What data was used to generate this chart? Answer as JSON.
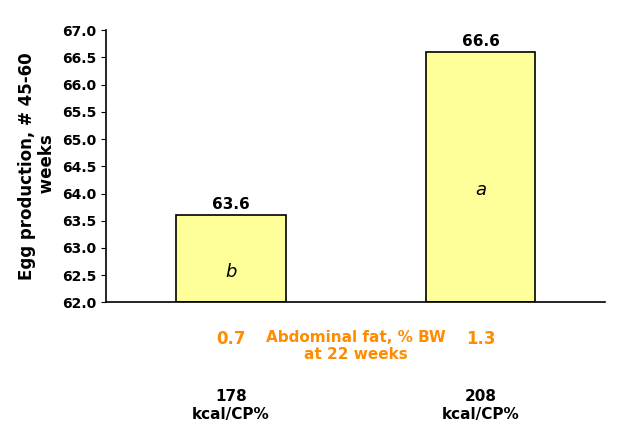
{
  "categories": [
    "178\nkcal/CP%",
    "208\nkcal/CP%"
  ],
  "values": [
    63.6,
    66.6
  ],
  "ymin": 62.0,
  "bar_color": "#ffff99",
  "bar_edgecolor": "#000000",
  "bar_letters": [
    "b",
    "a"
  ],
  "bar_abdominal": [
    "0.7",
    "1.3"
  ],
  "xlabel_center": "Abdominal fat, % BW\nat 22 weeks",
  "ylim": [
    62.0,
    67.0
  ],
  "ytick_step": 0.5,
  "value_labels": [
    "63.6",
    "66.6"
  ],
  "bar_letter_fontsize": 13,
  "value_label_fontsize": 11,
  "abdominal_fontsize": 12,
  "xlabel_fontsize": 11,
  "ylabel_fontsize": 12,
  "xtick_fontsize": 11,
  "abdominal_color": "#ff8c00",
  "xlabel_color": "#ff8c00",
  "background_color": "#ffffff",
  "bar_positions": [
    0.25,
    0.75
  ],
  "bar_width": 0.22
}
